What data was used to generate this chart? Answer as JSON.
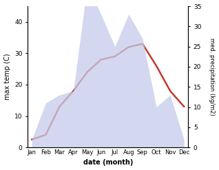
{
  "months": [
    "Jan",
    "Feb",
    "Mar",
    "Apr",
    "May",
    "Jun",
    "Jul",
    "Aug",
    "Sep",
    "Oct",
    "Nov",
    "Dec"
  ],
  "max_temp": [
    2.5,
    4.0,
    13.0,
    18.0,
    24.0,
    28.0,
    29.0,
    32.0,
    33.0,
    26.0,
    18.0,
    13.0
  ],
  "precipitation": [
    2.0,
    11.0,
    13.0,
    14.0,
    40.0,
    33.0,
    25.0,
    33.0,
    27.0,
    10.0,
    13.0,
    2.0
  ],
  "temp_color": "#c0392b",
  "precip_fill_color": "#c5cceb",
  "precip_alpha": 0.75,
  "ylim_left": [
    0,
    45
  ],
  "ylim_right": [
    0,
    35
  ],
  "yticks_left": [
    0,
    10,
    20,
    30,
    40
  ],
  "yticks_right": [
    0,
    5,
    10,
    15,
    20,
    25,
    30,
    35
  ],
  "ylabel_left": "max temp (C)",
  "ylabel_right": "med. precipitation (kg/m2)",
  "xlabel": "date (month)",
  "bg_color": "#ffffff",
  "temp_linewidth": 1.8
}
